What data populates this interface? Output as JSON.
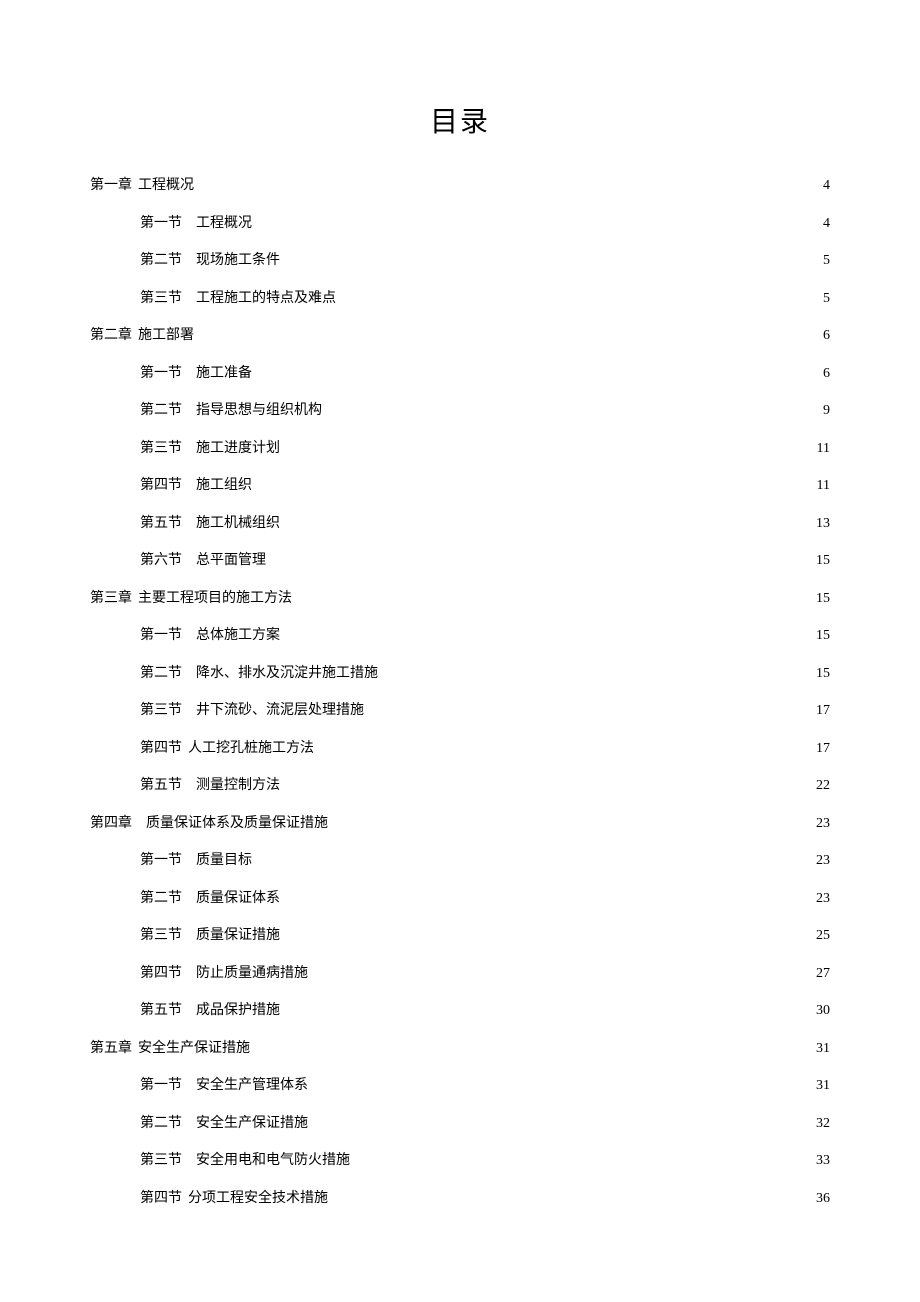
{
  "title": "目录",
  "entries": [
    {
      "level": 1,
      "section": "第一章",
      "text": "工程概况",
      "page": "4",
      "tight": true
    },
    {
      "level": 2,
      "section": "第一节",
      "text": "工程概况",
      "page": "4",
      "tight": false
    },
    {
      "level": 2,
      "section": "第二节",
      "text": "现场施工条件",
      "page": "5",
      "tight": false
    },
    {
      "level": 2,
      "section": "第三节",
      "text": "工程施工的特点及难点",
      "page": "5",
      "tight": false
    },
    {
      "level": 1,
      "section": "第二章",
      "text": "施工部署",
      "page": "6",
      "tight": true
    },
    {
      "level": 2,
      "section": "第一节",
      "text": "施工准备",
      "page": "6",
      "tight": false
    },
    {
      "level": 2,
      "section": "第二节",
      "text": "指导思想与组织机构",
      "page": "9",
      "tight": false
    },
    {
      "level": 2,
      "section": "第三节",
      "text": "施工进度计划",
      "page": "11",
      "tight": false
    },
    {
      "level": 2,
      "section": "第四节",
      "text": "施工组织",
      "page": "11",
      "tight": false
    },
    {
      "level": 2,
      "section": "第五节",
      "text": "施工机械组织",
      "page": "13",
      "tight": false
    },
    {
      "level": 2,
      "section": "第六节",
      "text": "总平面管理",
      "page": "15",
      "tight": false
    },
    {
      "level": 1,
      "section": "第三章",
      "text": "主要工程项目的施工方法",
      "page": "15",
      "tight": true
    },
    {
      "level": 2,
      "section": "第一节",
      "text": "总体施工方案",
      "page": "15",
      "tight": false
    },
    {
      "level": 2,
      "section": "第二节",
      "text": "降水、排水及沉淀井施工措施",
      "page": "15",
      "tight": false
    },
    {
      "level": 2,
      "section": "第三节",
      "text": "井下流砂、流泥层处理措施",
      "page": "17",
      "tight": false
    },
    {
      "level": 2,
      "section": "第四节",
      "text": "人工挖孔桩施工方法",
      "page": "17",
      "tight": true
    },
    {
      "level": 2,
      "section": "第五节",
      "text": "测量控制方法",
      "page": "22",
      "tight": false
    },
    {
      "level": 1,
      "section": "第四章",
      "text": "质量保证体系及质量保证措施",
      "page": "23",
      "tight": false
    },
    {
      "level": 2,
      "section": "第一节",
      "text": "质量目标",
      "page": "23",
      "tight": false
    },
    {
      "level": 2,
      "section": "第二节",
      "text": "质量保证体系",
      "page": "23",
      "tight": false
    },
    {
      "level": 2,
      "section": "第三节",
      "text": "质量保证措施",
      "page": "25",
      "tight": false
    },
    {
      "level": 2,
      "section": "第四节",
      "text": "防止质量通病措施",
      "page": "27",
      "tight": false
    },
    {
      "level": 2,
      "section": "第五节",
      "text": "成品保护措施",
      "page": "30",
      "tight": false
    },
    {
      "level": 1,
      "section": "第五章",
      "text": "安全生产保证措施",
      "page": "31",
      "tight": true
    },
    {
      "level": 2,
      "section": "第一节",
      "text": "安全生产管理体系",
      "page": "31",
      "tight": false
    },
    {
      "level": 2,
      "section": "第二节",
      "text": "安全生产保证措施",
      "page": "32",
      "tight": false
    },
    {
      "level": 2,
      "section": "第三节",
      "text": "安全用电和电气防火措施",
      "page": "33",
      "tight": false
    },
    {
      "level": 2,
      "section": "第四节",
      "text": "分项工程安全技术措施",
      "page": "36",
      "tight": true
    }
  ]
}
